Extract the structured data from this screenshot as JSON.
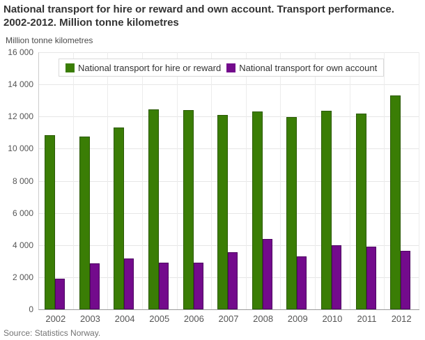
{
  "title": "National transport for hire or reward and own account. Transport performance. 2002-2012. Million tonne kilometres",
  "y_axis_title": "Million tonne kilometres",
  "source": "Source: Statistics Norway.",
  "chart_data": {
    "type": "bar",
    "title": "National transport for hire or reward and own account. Transport performance. 2002-2012. Million tonne kilometres",
    "ylabel": "Million tonne kilometres",
    "xlabel": "",
    "categories": [
      "2002",
      "2003",
      "2004",
      "2005",
      "2006",
      "2007",
      "2008",
      "2009",
      "2010",
      "2011",
      "2012"
    ],
    "series": [
      {
        "name": "National transport for hire or reward",
        "color": "#3a7d05",
        "border_color": "#2b5a05",
        "values": [
          10850,
          10750,
          11300,
          12450,
          12400,
          12100,
          12300,
          11950,
          12350,
          12200,
          13300
        ]
      },
      {
        "name": "National transport for own account",
        "color": "#730b8c",
        "border_color": "#4c0560",
        "values": [
          1900,
          2850,
          3150,
          2900,
          2900,
          3550,
          4400,
          3300,
          4000,
          3900,
          3650
        ]
      }
    ],
    "ylim": [
      0,
      16000
    ],
    "ytick_interval": 2000,
    "ytick_labels": [
      "0",
      "2 000",
      "4 000",
      "6 000",
      "8 000",
      "10 000",
      "12 000",
      "14 000",
      "16 000"
    ],
    "grid": true,
    "legend_position": "top-inside"
  }
}
